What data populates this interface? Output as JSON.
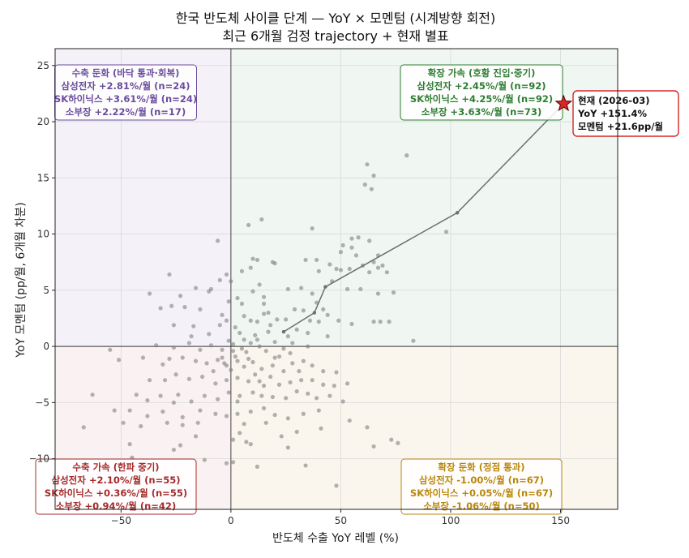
{
  "chart_data": {
    "type": "scatter",
    "title_lines": [
      "한국 반도체 사이클 단계 — YoY × 모멘텀 (시계방향 회전)",
      "최근 6개월 검정 trajectory + 현재 별표"
    ],
    "xlabel": "반도체 수출 YoY 레벨 (%)",
    "ylabel": "YoY 모멘텀 (pp/월, 6개월 차분)",
    "xlim": [
      -80,
      176
    ],
    "ylim": [
      -14.5,
      26.5
    ],
    "x_ticks": [
      -50,
      0,
      50,
      100,
      150
    ],
    "y_ticks": [
      -10,
      -5,
      0,
      5,
      10,
      15,
      20,
      25
    ],
    "grid": true,
    "colors": {
      "expansion_accel": "#2e7d32",
      "recovery": "#6a4c9c",
      "contraction_accel": "#a52a2a",
      "expansion_slow": "#b8860b",
      "points": "#808080",
      "trajectory": "#6e6e6e",
      "current": "#d62728"
    },
    "quadrants": [
      {
        "key": "recovery",
        "corner": "top-left",
        "lines": [
          "수축 둔화 (바닥 통과·회복)",
          "삼성전자 +2.81%/월 (n=24)",
          "SK하이닉스 +3.61%/월 (n=24)",
          "소부장 +2.22%/월 (n=17)"
        ]
      },
      {
        "key": "expansion_accel",
        "corner": "top-right",
        "lines": [
          "확장 가속 (호황 진입·중기)",
          "삼성전자 +2.45%/월 (n=92)",
          "SK하이닉스 +4.25%/월 (n=92)",
          "소부장 +3.63%/월 (n=73)"
        ]
      },
      {
        "key": "contraction_accel",
        "corner": "bottom-left",
        "lines": [
          "수축 가속 (한파 중기)",
          "삼성전자 +2.10%/월 (n=55)",
          "SK하이닉스 +0.36%/월 (n=55)",
          "소부장 +0.94%/월 (n=42)"
        ]
      },
      {
        "key": "expansion_slow",
        "corner": "bottom-right",
        "lines": [
          "확장 둔화 (정점 통과)",
          "삼성전자 -1.00%/월 (n=67)",
          "SK하이닉스 +0.05%/월 (n=67)",
          "소부장 -1.06%/월 (n=50)"
        ]
      }
    ],
    "trajectory": [
      [
        24,
        1.3
      ],
      [
        38,
        3.0
      ],
      [
        43,
        5.3
      ],
      [
        103,
        11.9
      ],
      [
        151.4,
        21.6
      ]
    ],
    "current": {
      "x": 151.4,
      "y": 21.6,
      "lines": [
        "현재 (2026-03)",
        "YoY +151.4%",
        "모멘텀 +21.6pp/월"
      ]
    },
    "points": [
      [
        80,
        17.0
      ],
      [
        62,
        16.2
      ],
      [
        65,
        15.2
      ],
      [
        61,
        14.4
      ],
      [
        64,
        14.0
      ],
      [
        98,
        10.2
      ],
      [
        37,
        10.5
      ],
      [
        14,
        11.3
      ],
      [
        8,
        10.8
      ],
      [
        -6,
        9.4
      ],
      [
        55,
        9.6
      ],
      [
        58,
        9.7
      ],
      [
        63,
        9.4
      ],
      [
        55,
        8.8
      ],
      [
        50,
        8.4
      ],
      [
        51,
        9.0
      ],
      [
        57,
        8.1
      ],
      [
        67,
        8.1
      ],
      [
        65,
        7.5
      ],
      [
        60,
        7.2
      ],
      [
        67,
        7.0
      ],
      [
        69,
        7.2
      ],
      [
        63,
        6.6
      ],
      [
        71,
        6.6
      ],
      [
        50,
        6.8
      ],
      [
        45,
        7.3
      ],
      [
        39,
        7.7
      ],
      [
        34,
        7.7
      ],
      [
        48,
        6.9
      ],
      [
        54,
        6.9
      ],
      [
        10,
        7.8
      ],
      [
        12,
        7.7
      ],
      [
        9,
        7.0
      ],
      [
        19,
        7.5
      ],
      [
        20,
        7.4
      ],
      [
        5,
        6.7
      ],
      [
        -2,
        6.4
      ],
      [
        0,
        5.8
      ],
      [
        -5,
        5.9
      ],
      [
        -9,
        5.1
      ],
      [
        -28,
        6.4
      ],
      [
        -37,
        4.7
      ],
      [
        -16,
        5.2
      ],
      [
        -23,
        4.5
      ],
      [
        -10,
        4.9
      ],
      [
        -1,
        4.0
      ],
      [
        -21,
        3.5
      ],
      [
        -27,
        3.6
      ],
      [
        -32,
        3.4
      ],
      [
        -14,
        3.3
      ],
      [
        3,
        4.3
      ],
      [
        5,
        3.8
      ],
      [
        10,
        4.9
      ],
      [
        13,
        5.5
      ],
      [
        15,
        4.4
      ],
      [
        17,
        3.0
      ],
      [
        26,
        5.1
      ],
      [
        32,
        5.2
      ],
      [
        37,
        4.7
      ],
      [
        39,
        3.9
      ],
      [
        42,
        3.3
      ],
      [
        46,
        5.8
      ],
      [
        53,
        5.1
      ],
      [
        59,
        5.1
      ],
      [
        67,
        4.7
      ],
      [
        74,
        4.8
      ],
      [
        -26,
        1.9
      ],
      [
        -17,
        1.8
      ],
      [
        -10,
        1.1
      ],
      [
        -5,
        1.9
      ],
      [
        -2,
        2.3
      ],
      [
        2,
        1.7
      ],
      [
        6,
        2.7
      ],
      [
        9,
        2.3
      ],
      [
        12,
        2.2
      ],
      [
        15,
        2.9
      ],
      [
        18,
        1.9
      ],
      [
        21,
        2.4
      ],
      [
        25,
        2.4
      ],
      [
        29,
        3.3
      ],
      [
        33,
        3.2
      ],
      [
        36,
        2.3
      ],
      [
        40,
        2.2
      ],
      [
        44,
        2.8
      ],
      [
        49,
        2.3
      ],
      [
        55,
        2.0
      ],
      [
        65,
        2.2
      ],
      [
        68,
        2.2
      ],
      [
        72,
        2.2
      ],
      [
        83,
        0.5
      ],
      [
        -34,
        0.1
      ],
      [
        -26,
        -0.1
      ],
      [
        -19,
        0.3
      ],
      [
        -14,
        -0.3
      ],
      [
        -9,
        0.1
      ],
      [
        -4,
        -0.3
      ],
      [
        1,
        0.2
      ],
      [
        5,
        -0.2
      ],
      [
        9,
        0.3
      ],
      [
        13,
        0.0
      ],
      [
        16,
        -0.4
      ],
      [
        20,
        0.4
      ],
      [
        24,
        -0.2
      ],
      [
        28,
        0.3
      ],
      [
        35,
        0.0
      ],
      [
        -55,
        -0.3
      ],
      [
        -51,
        -1.2
      ],
      [
        -40,
        -1.0
      ],
      [
        -28,
        -1.1
      ],
      [
        -22,
        -1.0
      ],
      [
        -16,
        -1.3
      ],
      [
        -11,
        -1.5
      ],
      [
        -6,
        -1.2
      ],
      [
        -2,
        -1.7
      ],
      [
        3,
        -1.3
      ],
      [
        6,
        -1.8
      ],
      [
        10,
        -1.4
      ],
      [
        14,
        -2.0
      ],
      [
        19,
        -1.7
      ],
      [
        24,
        -2.2
      ],
      [
        28,
        -1.5
      ],
      [
        33,
        -1.3
      ],
      [
        37,
        -1.7
      ],
      [
        42,
        -2.2
      ],
      [
        48,
        -2.3
      ],
      [
        -37,
        -3.0
      ],
      [
        -30,
        -3.0
      ],
      [
        -25,
        -2.5
      ],
      [
        -19,
        -2.9
      ],
      [
        -13,
        -2.7
      ],
      [
        -7,
        -3.3
      ],
      [
        -2,
        -3.0
      ],
      [
        3,
        -2.8
      ],
      [
        8,
        -3.1
      ],
      [
        13,
        -3.1
      ],
      [
        18,
        -2.7
      ],
      [
        22,
        -3.4
      ],
      [
        27,
        -3.2
      ],
      [
        32,
        -3.0
      ],
      [
        37,
        -3.0
      ],
      [
        42,
        -3.4
      ],
      [
        47,
        -3.5
      ],
      [
        53,
        -3.3
      ],
      [
        -63,
        -4.3
      ],
      [
        -43,
        -4.3
      ],
      [
        -38,
        -4.8
      ],
      [
        -32,
        -4.4
      ],
      [
        -24,
        -4.3
      ],
      [
        -18,
        -4.9
      ],
      [
        -12,
        -4.4
      ],
      [
        -6,
        -4.7
      ],
      [
        -1,
        -4.1
      ],
      [
        4,
        -4.4
      ],
      [
        10,
        -4.1
      ],
      [
        14,
        -4.4
      ],
      [
        19,
        -4.5
      ],
      [
        25,
        -4.6
      ],
      [
        30,
        -4.0
      ],
      [
        35,
        -4.2
      ],
      [
        39,
        -4.6
      ],
      [
        45,
        -4.4
      ],
      [
        51,
        -4.9
      ],
      [
        -53,
        -5.7
      ],
      [
        -46,
        -5.7
      ],
      [
        -38,
        -6.2
      ],
      [
        -31,
        -5.8
      ],
      [
        -22,
        -6.3
      ],
      [
        -14,
        -5.7
      ],
      [
        -7,
        -6.0
      ],
      [
        -2,
        -6.2
      ],
      [
        3,
        -6.0
      ],
      [
        9,
        -5.8
      ],
      [
        15,
        -5.5
      ],
      [
        20,
        -6.1
      ],
      [
        26,
        -6.4
      ],
      [
        33,
        -6.0
      ],
      [
        40,
        -5.7
      ],
      [
        -49,
        -6.8
      ],
      [
        -41,
        -7.1
      ],
      [
        -29,
        -6.8
      ],
      [
        -22,
        -7.0
      ],
      [
        -15,
        -6.8
      ],
      [
        6,
        -6.9
      ],
      [
        16,
        -6.8
      ],
      [
        30,
        -7.6
      ],
      [
        41,
        -7.3
      ],
      [
        54,
        -6.6
      ],
      [
        62,
        -7.2
      ],
      [
        -67,
        -7.2
      ],
      [
        -46,
        -8.7
      ],
      [
        -26,
        -9.2
      ],
      [
        -23,
        -8.8
      ],
      [
        -16,
        -8.0
      ],
      [
        1,
        -8.3
      ],
      [
        4,
        -7.7
      ],
      [
        7,
        -8.5
      ],
      [
        9,
        -8.7
      ],
      [
        23,
        -8.0
      ],
      [
        26,
        -9.0
      ],
      [
        65,
        -8.9
      ],
      [
        73,
        -8.3
      ],
      [
        76,
        -8.6
      ],
      [
        -45,
        -9.9
      ],
      [
        -12,
        -10.1
      ],
      [
        1,
        -10.3
      ],
      [
        -2,
        -10.4
      ],
      [
        12,
        -10.7
      ],
      [
        34,
        -10.6
      ],
      [
        48,
        -12.4
      ],
      [
        -4,
        2.8
      ],
      [
        0,
        -2.1
      ],
      [
        2,
        -0.9
      ],
      [
        -3,
        -1.5
      ],
      [
        7,
        -0.5
      ],
      [
        11,
        1.0
      ],
      [
        -1,
        0.5
      ],
      [
        4,
        1.2
      ],
      [
        8,
        -1.1
      ],
      [
        17,
        1.3
      ],
      [
        22,
        -0.9
      ],
      [
        26,
        0.9
      ],
      [
        30,
        1.5
      ],
      [
        31,
        -2.2
      ],
      [
        -8,
        -2.2
      ],
      [
        15,
        3.8
      ],
      [
        11,
        -2.5
      ],
      [
        -4,
        -1.0
      ],
      [
        1,
        -0.4
      ],
      [
        6,
        0.6
      ],
      [
        3,
        -4.9
      ],
      [
        -31,
        -1.6
      ],
      [
        -26,
        -5.0
      ],
      [
        20,
        -1.0
      ],
      [
        12,
        0.6
      ],
      [
        15,
        -3.5
      ],
      [
        35,
        1.2
      ],
      [
        27,
        -0.6
      ],
      [
        -18,
        0.9
      ],
      [
        44,
        0.9
      ],
      [
        40,
        6.7
      ]
    ]
  }
}
